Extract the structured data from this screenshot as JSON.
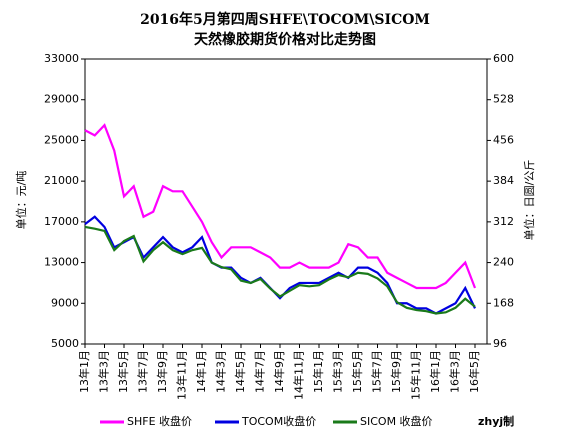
{
  "chart_data": {
    "type": "line",
    "title": "2016年5月第四周SHFE\\TOCOM\\SICOM",
    "subtitle": "天然橡胶期货价格对比走势图",
    "y_label": "单位：元/吨",
    "y2_label": "单位：日圆/公斤",
    "annotation": "zhyj制",
    "categories": [
      "13年1月",
      null,
      "13年3月",
      null,
      "13年5月",
      null,
      "13年7月",
      null,
      "13年9月",
      null,
      "13年11月",
      null,
      "14年1月",
      null,
      "14年3月",
      null,
      "14年5月",
      null,
      "14年7月",
      null,
      "14年9月",
      null,
      "14年11月",
      null,
      "15年1月",
      null,
      "15年3月",
      null,
      "15年5月",
      null,
      "15年7月",
      null,
      "15年9月",
      null,
      "15年11月",
      null,
      "16年1月",
      null,
      "16年3月",
      null,
      "16年5月"
    ],
    "ylim": [
      5000,
      33000
    ],
    "yticks": [
      5000,
      9000,
      13000,
      17000,
      21000,
      25000,
      29000,
      33000
    ],
    "y2lim": [
      96,
      600
    ],
    "y2ticks": [
      96,
      168,
      240,
      312,
      384,
      456,
      528,
      600
    ],
    "legend": "bottom",
    "series": [
      {
        "name": "SHFE 收盘价",
        "color": "#ff00ff",
        "values": [
          26000,
          25500,
          26500,
          24000,
          19500,
          20500,
          17500,
          18000,
          20500,
          20000,
          20000,
          18500,
          17000,
          15000,
          13500,
          14500,
          14500,
          14500,
          14000,
          13500,
          12500,
          12500,
          13000,
          12500,
          12500,
          12500,
          13000,
          14800,
          14500,
          13500,
          13500,
          12000,
          11500,
          11000,
          10500,
          10500,
          10500,
          11000,
          12000,
          13000,
          10500
        ]
      },
      {
        "name": "TOCOM收盘价",
        "color": "#0000e0",
        "axis": "y2",
        "values": [
          308,
          321,
          303,
          267,
          276,
          285,
          249,
          267,
          285,
          267,
          258,
          267,
          285,
          240,
          231,
          231,
          213,
          204,
          213,
          195,
          177,
          195,
          204,
          204,
          204,
          213,
          222,
          213,
          231,
          231,
          222,
          204,
          168,
          168,
          159,
          159,
          150,
          159,
          168,
          195,
          159
        ]
      },
      {
        "name": "SICOM 收盘价",
        "color": "#1a7a1a",
        "axis": "y2",
        "values": [
          303,
          300,
          296,
          262,
          278,
          287,
          242,
          262,
          276,
          262,
          255,
          262,
          266,
          240,
          232,
          228,
          208,
          204,
          211,
          194,
          180,
          190,
          200,
          198,
          200,
          210,
          218,
          214,
          222,
          220,
          212,
          198,
          170,
          160,
          156,
          154,
          150,
          152,
          160,
          176,
          162
        ]
      }
    ]
  }
}
